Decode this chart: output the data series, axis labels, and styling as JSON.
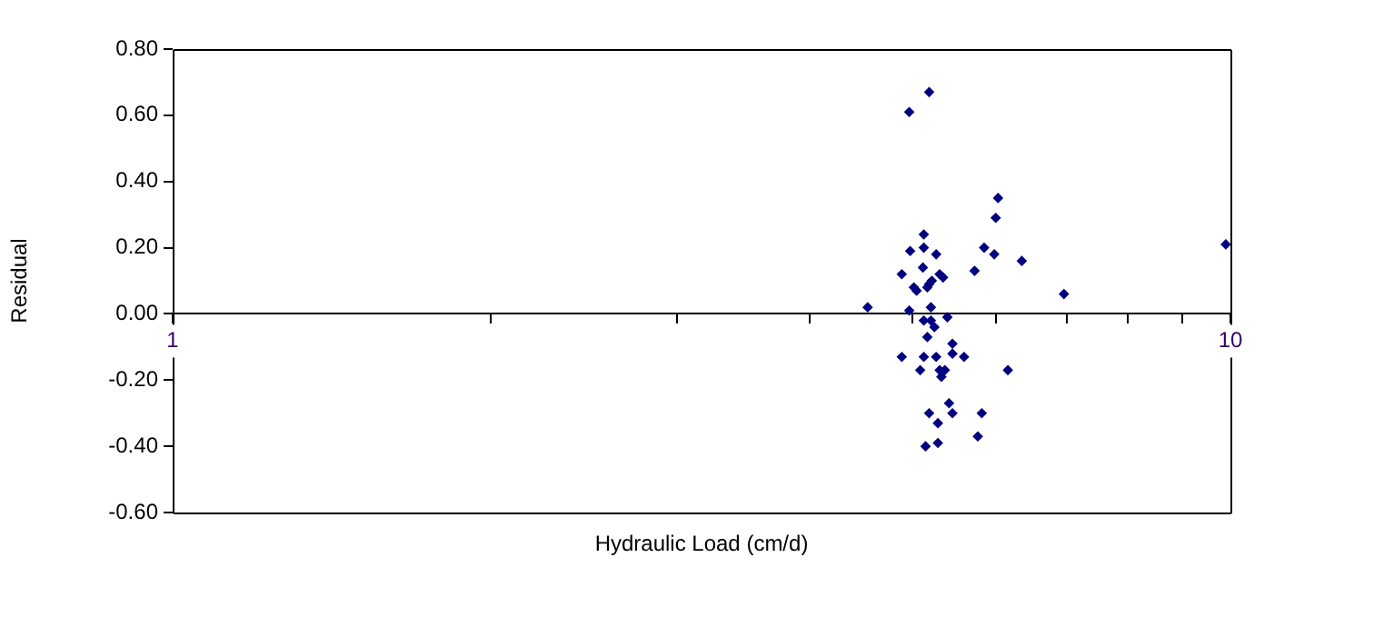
{
  "chart_data": {
    "type": "scatter",
    "xlabel": "Hydraulic Load (cm/d)",
    "ylabel": "Residual",
    "log": "x",
    "legend": false,
    "marker": "diamond",
    "xlim": [
      1,
      10
    ],
    "xticks": [
      1,
      {
        "value": 2,
        "label": null
      },
      {
        "value": 3,
        "label": null
      },
      {
        "value": 4,
        "label": null
      },
      {
        "value": 5,
        "label": null
      },
      {
        "value": 6,
        "label": null
      },
      {
        "value": 7,
        "label": null
      },
      {
        "value": 8,
        "label": null
      },
      {
        "value": 9,
        "label": null
      },
      10
    ],
    "ylim": [
      -0.6,
      0.8
    ],
    "yticks": [
      {
        "value": -0.6,
        "label": "-0.60"
      },
      {
        "value": -0.4,
        "label": "-0.40"
      },
      {
        "value": -0.2,
        "label": "-0.20"
      },
      {
        "value": 0,
        "label": "0.00"
      },
      {
        "value": 0.2,
        "label": "0.20"
      },
      {
        "value": 0.4,
        "label": "0.40"
      },
      {
        "value": 0.6,
        "label": "0.60"
      },
      {
        "value": 0.8,
        "label": "0.80"
      }
    ],
    "series": [
      {
        "color": "#000080",
        "x": [
          5.19,
          4.97,
          6.03,
          6.0,
          5.13,
          4.98,
          5.13,
          5.27,
          5.85,
          5.98,
          6.35,
          4.89,
          5.12,
          5.73,
          5.31,
          5.35,
          5.22,
          5.19,
          5.02,
          5.17,
          5.05,
          6.96,
          4.54,
          5.21,
          4.97,
          5.13,
          5.21,
          5.25,
          5.4,
          5.17,
          5.46,
          5.46,
          4.89,
          5.13,
          5.27,
          5.6,
          5.09,
          5.31,
          5.37,
          5.33,
          6.16,
          5.42,
          5.46,
          5.82,
          5.19,
          5.29,
          5.77,
          5.29,
          5.15,
          9.9
        ],
        "values": [
          0.67,
          0.61,
          0.35,
          0.29,
          0.24,
          0.19,
          0.2,
          0.18,
          0.2,
          0.18,
          0.16,
          0.12,
          0.14,
          0.13,
          0.12,
          0.11,
          0.1,
          0.09,
          0.08,
          0.08,
          0.07,
          0.06,
          0.02,
          0.02,
          0.01,
          -0.02,
          -0.02,
          -0.04,
          -0.01,
          -0.07,
          -0.09,
          -0.12,
          -0.13,
          -0.13,
          -0.13,
          -0.13,
          -0.17,
          -0.17,
          -0.17,
          -0.19,
          -0.17,
          -0.27,
          -0.3,
          -0.3,
          -0.3,
          -0.33,
          -0.37,
          -0.39,
          -0.4,
          0.21
        ]
      }
    ]
  }
}
